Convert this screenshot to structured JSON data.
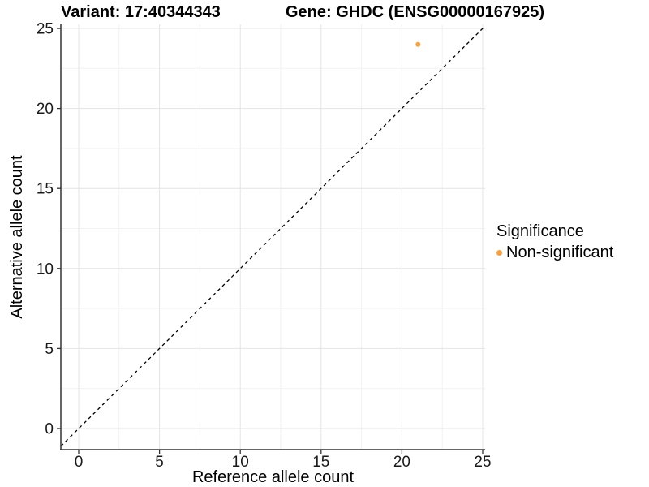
{
  "titles": {
    "variant": "Variant: 17:40344343",
    "gene": "Gene: GHDC (ENSG00000167925)"
  },
  "legend": {
    "title": "Significance",
    "items": [
      {
        "label": "Non-significant",
        "color": "#F9A13C",
        "marker": "dot-icon"
      }
    ]
  },
  "colors": {
    "non_significant": "#F9A13C",
    "axis_line": "#333333",
    "tick_label": "#1a1a1a",
    "grid_major": "#e4e4e4",
    "grid_minor": "#f2f2f2",
    "reference_line": "#000000"
  },
  "chart_data": {
    "type": "scatter",
    "title": "Variant: 17:40344343    Gene: GHDC (ENSG00000167925)",
    "xlabel": "Reference allele count",
    "ylabel": "Alternative allele count",
    "xlim": [
      0,
      25
    ],
    "ylim": [
      0,
      25
    ],
    "x_ticks": [
      0,
      5,
      10,
      15,
      20,
      25
    ],
    "y_ticks": [
      0,
      5,
      10,
      15,
      20,
      25
    ],
    "grid": true,
    "points": [
      {
        "x": 21,
        "y": 24,
        "series": "Non-significant",
        "color": "#F9A13C"
      }
    ],
    "reference_line": {
      "type": "identity",
      "style": "dashed",
      "color": "#000000"
    },
    "legend_position": "right"
  }
}
